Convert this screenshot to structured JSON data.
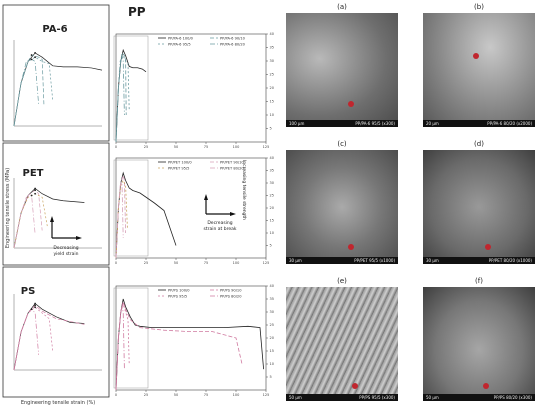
{
  "figure": {
    "header_pp": "PP",
    "y_axis_label": "Engineering tensile stress (MPa)",
    "x_axis_label": "Engineering tensile strain (%)",
    "annotations": {
      "yield_strain": "Decreasing\nyield strain",
      "increase_strength": "Increasing\ntensile strength",
      "strain_at_break": "Decreasing\nstrain at break"
    }
  },
  "chart_data": [
    {
      "type": "line",
      "row": "PA-6",
      "title": "PA-6",
      "legend": [
        "PP/PA-6 100/0",
        "PP/PA-6 90/10",
        "PP/PA-6 95/5",
        "PP/PA-6 80/20"
      ],
      "colors": [
        "#222222",
        "#6a9aa0",
        "#6a9aa0",
        "#6a9aa0"
      ],
      "dash": [
        "",
        "4,2",
        "2,2",
        "5,2,1,2"
      ],
      "xlim": [
        0,
        125
      ],
      "ylim": [
        0,
        40
      ],
      "xticks": [
        0,
        25,
        50,
        75,
        100,
        125
      ],
      "yticks": [
        5,
        10,
        15,
        20,
        25,
        30,
        35,
        40
      ],
      "series": [
        {
          "x": [
            0,
            2,
            4,
            6,
            8,
            11,
            14,
            18,
            22,
            25
          ],
          "y": [
            0,
            20,
            30,
            34,
            32,
            28,
            27.5,
            27.5,
            27,
            26
          ]
        },
        {
          "x": [
            0,
            2,
            4,
            5,
            7,
            8,
            8.5
          ],
          "y": [
            0,
            20,
            30,
            33,
            32,
            31,
            10
          ]
        },
        {
          "x": [
            0,
            2,
            4,
            6,
            8,
            10,
            11
          ],
          "y": [
            0,
            20,
            30,
            32,
            30,
            29,
            12
          ]
        },
        {
          "x": [
            0,
            2,
            3.5,
            5,
            6,
            7
          ],
          "y": [
            0,
            20,
            30,
            31,
            30,
            10
          ]
        }
      ]
    },
    {
      "type": "line",
      "row": "PET",
      "title": "PET",
      "legend": [
        "PP/PET 100/0",
        "PP/PET 90/10",
        "PP/PET 95/5",
        "PP/PET 80/20"
      ],
      "colors": [
        "#222222",
        "#d7a0b8",
        "#c9a25e",
        "#d7a0b8"
      ],
      "dash": [
        "",
        "4,2",
        "2,2",
        "5,2,1,2"
      ],
      "xlim": [
        0,
        125
      ],
      "ylim": [
        0,
        40
      ],
      "xticks": [
        0,
        25,
        50,
        75,
        100,
        125
      ],
      "yticks": [
        5,
        10,
        15,
        20,
        25,
        30,
        35,
        40
      ],
      "series": [
        {
          "x": [
            0,
            2,
            4,
            6,
            8,
            11,
            14,
            20,
            26,
            32,
            40,
            50
          ],
          "y": [
            0,
            20,
            30,
            34,
            31,
            28,
            27,
            26,
            24,
            22,
            19,
            5
          ]
        },
        {
          "x": [
            0,
            2,
            4,
            6,
            7,
            8
          ],
          "y": [
            0,
            20,
            30,
            33,
            31,
            10
          ]
        },
        {
          "x": [
            0,
            2,
            4,
            6,
            8,
            9.5
          ],
          "y": [
            0,
            20,
            29,
            31,
            29,
            12
          ]
        },
        {
          "x": [
            0,
            2,
            3.5,
            5,
            6
          ],
          "y": [
            0,
            20,
            29,
            30,
            8
          ]
        }
      ]
    },
    {
      "type": "line",
      "row": "PS",
      "title": "PS",
      "legend": [
        "PP/PS 100/0",
        "PP/PS 90/10",
        "PP/PS 95/5",
        "PP/PS 80/20"
      ],
      "colors": [
        "#222222",
        "#d07aa0",
        "#d07aa0",
        "#d07aa0"
      ],
      "dash": [
        "",
        "4,2",
        "2,2",
        "5,2,1,2"
      ],
      "xlim": [
        0,
        125
      ],
      "ylim": [
        0,
        40
      ],
      "xticks": [
        0,
        25,
        50,
        75,
        100,
        125
      ],
      "yticks": [
        5,
        10,
        15,
        20,
        25,
        30,
        35,
        40
      ],
      "series": [
        {
          "x": [
            0,
            2,
            4,
            6,
            8,
            12,
            16,
            20,
            30,
            50,
            70,
            90,
            110,
            120,
            123
          ],
          "y": [
            0,
            20,
            30,
            35,
            32,
            28,
            25,
            24.5,
            24,
            24,
            24,
            24,
            24.5,
            24,
            8
          ]
        },
        {
          "x": [
            0,
            2,
            4,
            6,
            8,
            12,
            20,
            40,
            60,
            80,
            100,
            105
          ],
          "y": [
            0,
            20,
            30,
            34,
            31,
            27,
            24,
            23,
            22.5,
            22.5,
            20,
            10
          ]
        },
        {
          "x": [
            0,
            2,
            4,
            6,
            8,
            10,
            11
          ],
          "y": [
            0,
            20,
            30,
            33,
            30,
            27,
            10
          ]
        },
        {
          "x": [
            0,
            2,
            4,
            5,
            6,
            7
          ],
          "y": [
            0,
            20,
            30,
            32,
            30,
            8
          ]
        }
      ]
    }
  ],
  "sem_panels": [
    {
      "label": "(a)",
      "scale": "100 µm",
      "caption": "PP/PA-6 95/5 (x300)"
    },
    {
      "label": "(b)",
      "scale": "20 µm",
      "caption": "PP/PA-6 80/20 (x2000)"
    },
    {
      "label": "(c)",
      "scale": "30 µm",
      "caption": "PP/PET 95/5 (x1000)"
    },
    {
      "label": "(d)",
      "scale": "30 µm",
      "caption": "PP/PET 80/20 (x1000)"
    },
    {
      "label": "(e)",
      "scale": "50 µm",
      "caption": "PP/PS 95/5 (x300)"
    },
    {
      "label": "(f)",
      "scale": "50 µm",
      "caption": "PP/PS 80/20 (x300)"
    }
  ]
}
